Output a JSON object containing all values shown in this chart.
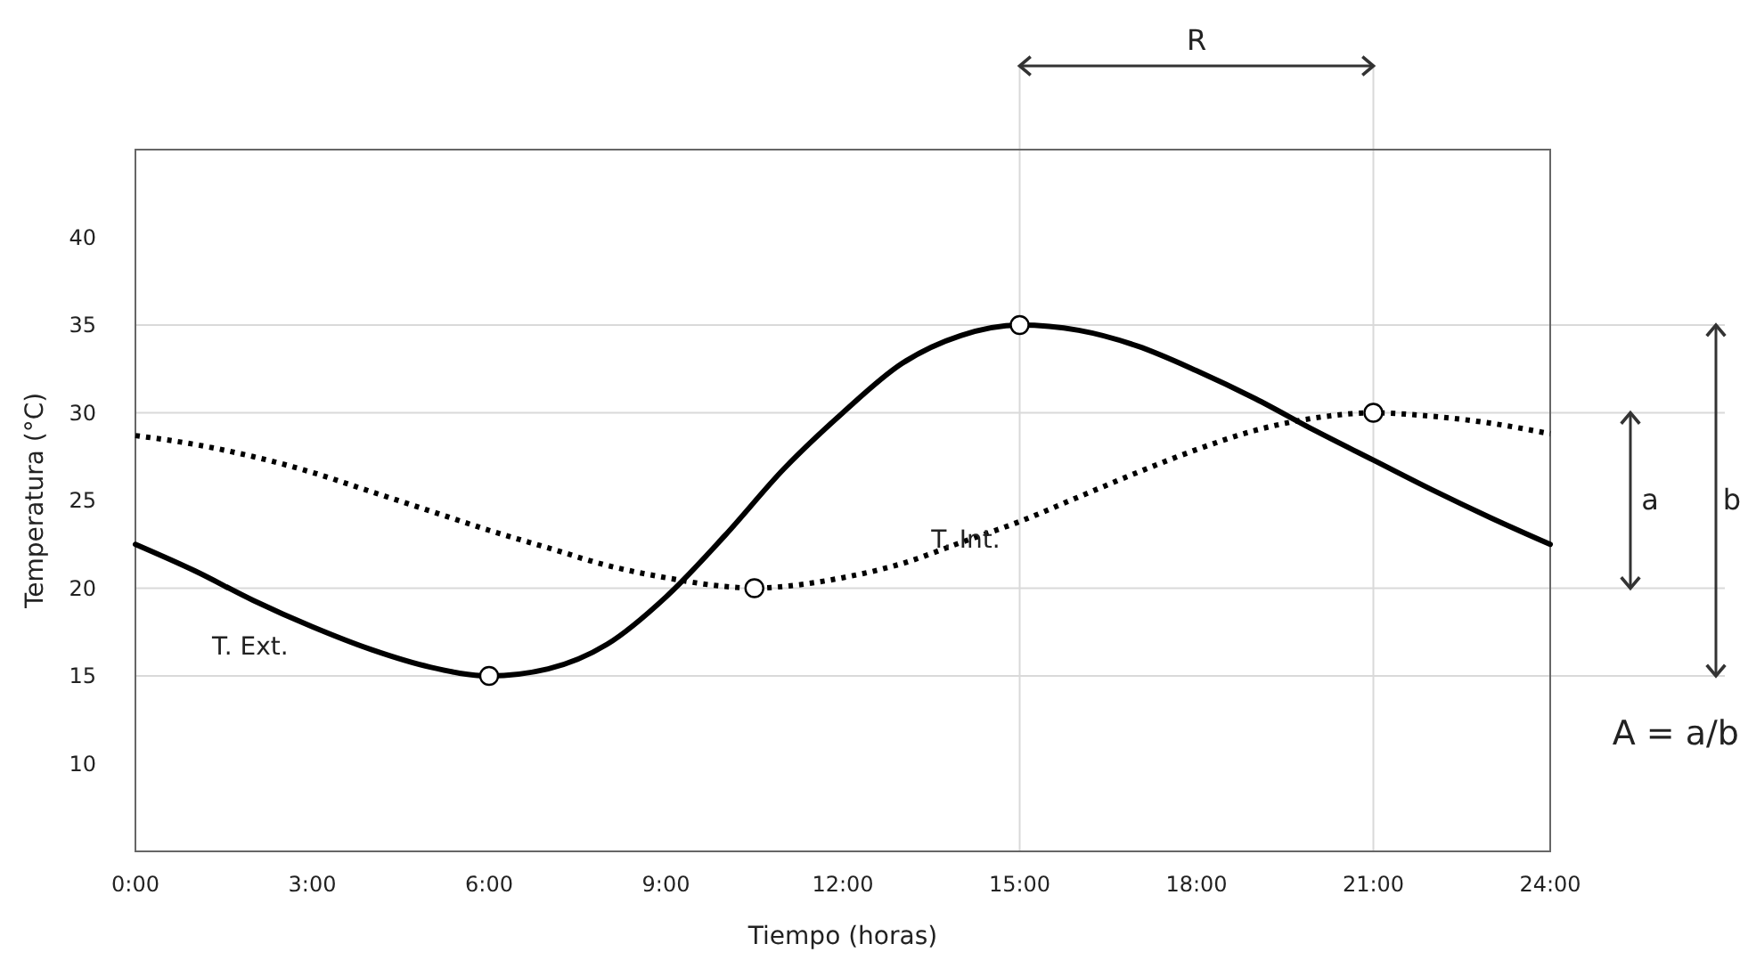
{
  "chart_data": {
    "type": "line",
    "xlabel": "Tiempo (horas)",
    "ylabel": "Temperatura (°C)",
    "xlim": [
      0,
      24
    ],
    "xticks": [
      {
        "value": 0,
        "label": "0:00"
      },
      {
        "value": 3,
        "label": "3:00"
      },
      {
        "value": 6,
        "label": "6:00"
      },
      {
        "value": 9,
        "label": "9:00"
      },
      {
        "value": 12,
        "label": "12:00"
      },
      {
        "value": 15,
        "label": "15:00"
      },
      {
        "value": 18,
        "label": "18:00"
      },
      {
        "value": 21,
        "label": "21:00"
      },
      {
        "value": 24,
        "label": "24:00"
      }
    ],
    "ylim": [
      5,
      45
    ],
    "yticks": [
      10,
      15,
      20,
      25,
      30,
      35,
      40
    ],
    "grid": false,
    "legend": false,
    "series": [
      {
        "name": "T. Ext.",
        "color": "#000000",
        "line_style": "solid",
        "marker": "none",
        "x": [
          0,
          1,
          2,
          3,
          4,
          5,
          6,
          7,
          8,
          9,
          10,
          11,
          12,
          13,
          14,
          15,
          16,
          17,
          18,
          19,
          20,
          21,
          22,
          23,
          24
        ],
        "values": [
          22.5,
          21,
          19.3,
          17.8,
          16.5,
          15.5,
          15,
          15.4,
          16.8,
          19.5,
          23,
          26.8,
          30,
          32.8,
          34.4,
          35,
          34.7,
          33.8,
          32.4,
          30.8,
          29,
          27.3,
          25.6,
          24,
          22.5
        ]
      },
      {
        "name": "T. Int.",
        "color": "#000000",
        "line_style": "dotted",
        "marker": "none",
        "x": [
          0,
          1,
          2,
          3,
          4,
          5,
          6,
          7,
          8,
          9,
          10,
          10.5,
          11,
          12,
          13,
          14,
          15,
          16,
          17,
          18,
          19,
          20,
          21,
          22,
          23,
          24
        ],
        "values": [
          28.7,
          28.2,
          27.5,
          26.6,
          25.5,
          24.4,
          23.3,
          22.3,
          21.3,
          20.6,
          20.1,
          20,
          20.1,
          20.6,
          21.4,
          22.6,
          23.8,
          25.2,
          26.6,
          27.9,
          29,
          29.7,
          30,
          29.8,
          29.4,
          28.8
        ]
      },
      {
        "type": "scatter",
        "color": "#000000",
        "marker": "circle",
        "x": [
          6,
          15,
          10.5,
          21
        ],
        "values": [
          15,
          35,
          20,
          30
        ]
      }
    ],
    "ref_lines": [
      {
        "axis": "y",
        "value": 35,
        "color": "#d9d9d9"
      },
      {
        "axis": "y",
        "value": 30,
        "color": "#d9d9d9"
      },
      {
        "axis": "y",
        "value": 20,
        "color": "#d9d9d9"
      },
      {
        "axis": "y",
        "value": 15,
        "color": "#d9d9d9"
      },
      {
        "axis": "x",
        "value": 15,
        "color": "#d9d9d9"
      },
      {
        "axis": "x",
        "value": 21,
        "color": "#d9d9d9"
      }
    ],
    "annotations": [
      "R",
      "a",
      "b",
      "A = a/b"
    ]
  }
}
